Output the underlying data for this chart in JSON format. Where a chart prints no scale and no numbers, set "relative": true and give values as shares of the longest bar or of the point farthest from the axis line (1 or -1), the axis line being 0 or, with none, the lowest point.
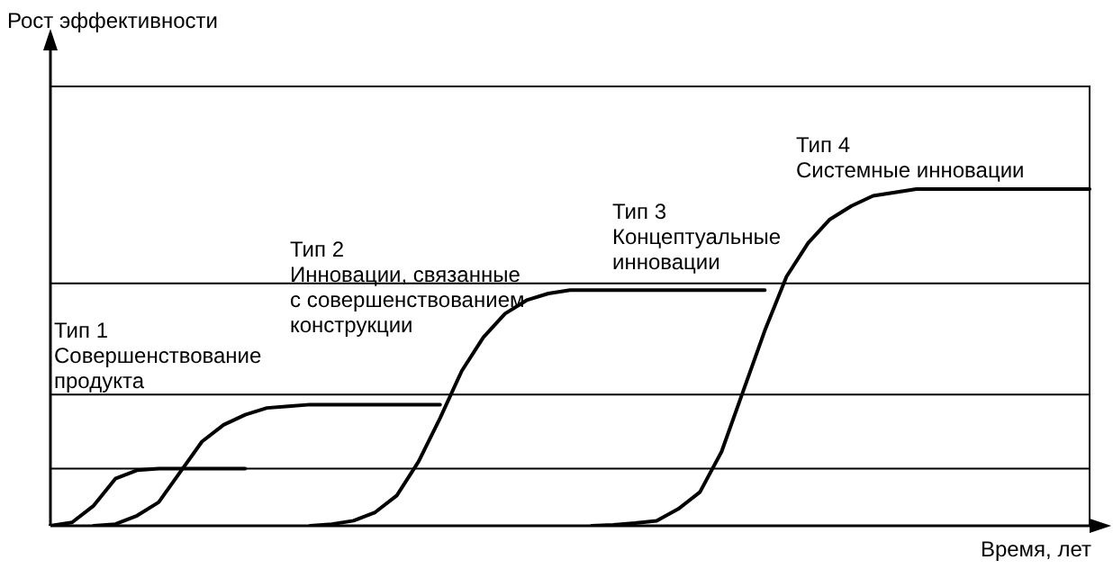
{
  "chart_data": {
    "type": "line",
    "relative": true,
    "xlabel": "Время, лет",
    "tick_labels": false,
    "legend": false,
    "marker": "none",
    "line_style": "solid",
    "categories": [
      null,
      null,
      null,
      null,
      null,
      null,
      null,
      null,
      null,
      null,
      null,
      null,
      null,
      null,
      null,
      null,
      null,
      null,
      null,
      null,
      null,
      null,
      null,
      null,
      null,
      null,
      null,
      null,
      null,
      null,
      null,
      null,
      null,
      null,
      null,
      null,
      null,
      null,
      null,
      null,
      null,
      null,
      null,
      null,
      null,
      null,
      null,
      null,
      null
    ],
    "series": [
      {
        "color": "#000000",
        "values": [
          0,
          0.01,
          0.06,
          0.14,
          0.165,
          0.17,
          0.17,
          0.17,
          0.17,
          0.17,
          null,
          null,
          null,
          null,
          null,
          null,
          null,
          null,
          null,
          null,
          null,
          null,
          null,
          null,
          null,
          null,
          null,
          null,
          null,
          null,
          null,
          null,
          null,
          null,
          null,
          null,
          null,
          null,
          null,
          null,
          null,
          null,
          null,
          null,
          null,
          null,
          null,
          null,
          null
        ]
      },
      {
        "color": "#000000",
        "values": [
          null,
          null,
          0,
          0.005,
          0.03,
          0.07,
          0.16,
          0.25,
          0.3,
          0.33,
          0.35,
          0.355,
          0.36,
          0.36,
          0.36,
          0.36,
          0.36,
          0.36,
          0.36,
          null,
          null,
          null,
          null,
          null,
          null,
          null,
          null,
          null,
          null,
          null,
          null,
          null,
          null,
          null,
          null,
          null,
          null,
          null,
          null,
          null,
          null,
          null,
          null,
          null,
          null,
          null,
          null,
          null,
          null
        ]
      },
      {
        "color": "#000000",
        "values": [
          null,
          null,
          null,
          null,
          null,
          null,
          null,
          null,
          null,
          null,
          null,
          null,
          0,
          0.005,
          0.015,
          0.04,
          0.09,
          0.19,
          0.32,
          0.46,
          0.56,
          0.63,
          0.67,
          0.69,
          0.7,
          0.7,
          0.7,
          0.7,
          0.7,
          0.7,
          0.7,
          0.7,
          0.7,
          0.7,
          null,
          null,
          null,
          null,
          null,
          null,
          null,
          null,
          null,
          null,
          null,
          null,
          null,
          null,
          null
        ]
      },
      {
        "color": "#000000",
        "values": [
          null,
          null,
          null,
          null,
          null,
          null,
          null,
          null,
          null,
          null,
          null,
          null,
          null,
          null,
          null,
          null,
          null,
          null,
          null,
          null,
          null,
          null,
          null,
          null,
          null,
          0,
          0.003,
          0.008,
          0.015,
          0.05,
          0.1,
          0.22,
          0.4,
          0.58,
          0.74,
          0.84,
          0.91,
          0.95,
          0.98,
          0.99,
          1,
          1,
          1,
          1,
          1,
          1,
          1,
          1,
          1
        ]
      }
    ],
    "ref_lines": [
      {
        "axis": "y",
        "value": 0.17,
        "color": "#000000"
      },
      {
        "axis": "y",
        "value": 0.39,
        "color": "#000000"
      },
      {
        "axis": "y",
        "value": 0.72,
        "color": "#000000"
      }
    ],
    "annotations": [
      "Рост эффективности",
      "Тип 1\nСовершенствование\nпродукта",
      "Тип 2\nИнновации, связанные\nс совершенствованием\nконструкции",
      "Тип 3\nКонцептуальные\nинновации",
      "Тип 4\nСистемные инновации"
    ]
  }
}
